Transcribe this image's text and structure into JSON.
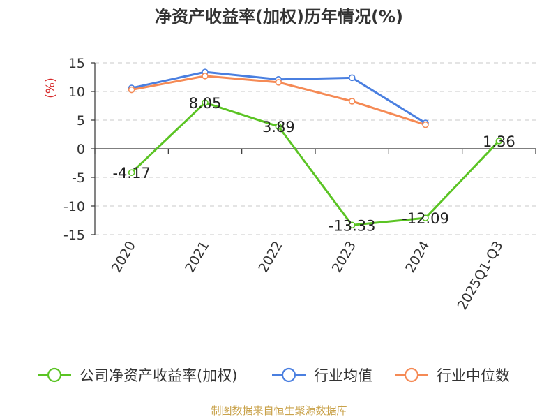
{
  "chart_data": {
    "type": "line",
    "title": "净资产收益率(加权)历年情况(%)",
    "ylabel": "(%)",
    "xlabel": "",
    "categories": [
      "2020",
      "2021",
      "2022",
      "2023",
      "2024",
      "2025Q1-Q3"
    ],
    "yticks": [
      "15",
      "10",
      "5",
      "0",
      "-5",
      "-10",
      "-15"
    ],
    "ylim": [
      -15,
      15
    ],
    "grid": true,
    "legend_position": "bottom",
    "series": [
      {
        "name": "公司净资产收益率(加权)",
        "color": "#5bc424",
        "values": [
          -4.17,
          8.05,
          3.89,
          -13.33,
          -12.09,
          1.36
        ],
        "labels": [
          "-4.17",
          "8.05",
          "3.89",
          "-13.33",
          "-12.09",
          "1.36"
        ]
      },
      {
        "name": "行业均值",
        "color": "#4a7fe0",
        "values": [
          10.6,
          13.4,
          12.1,
          12.4,
          4.5,
          null
        ]
      },
      {
        "name": "行业中位数",
        "color": "#f58a55",
        "values": [
          10.3,
          12.7,
          11.6,
          8.3,
          4.2,
          null
        ]
      }
    ]
  },
  "footer": {
    "source": "制图数据来自恒生聚源数据库",
    "source_color": "#c9a24a"
  }
}
